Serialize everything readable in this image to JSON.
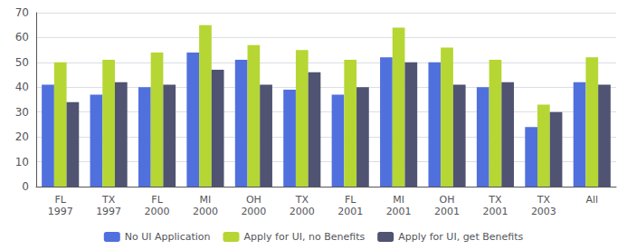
{
  "chart_data": {
    "type": "bar",
    "categories": [
      "FL\n1997",
      "TX\n1997",
      "FL\n2000",
      "MI\n2000",
      "OH\n2000",
      "TX\n2000",
      "FL\n2001",
      "MI\n2001",
      "OH\n2001",
      "TX\n2001",
      "TX\n2003",
      "All"
    ],
    "series": [
      {
        "name": "No UI Application",
        "values": [
          41,
          37,
          40,
          54,
          51,
          39,
          37,
          52,
          50,
          40,
          24,
          42
        ]
      },
      {
        "name": "Apply for UI, no Benefits",
        "values": [
          50,
          51,
          54,
          65,
          57,
          55,
          51,
          64,
          56,
          51,
          33,
          52
        ]
      },
      {
        "name": "Apply for UI, get Benefits",
        "values": [
          34,
          42,
          41,
          47,
          41,
          46,
          40,
          50,
          41,
          42,
          30,
          41
        ]
      }
    ],
    "ylim": [
      0,
      70
    ],
    "yticks": [
      0,
      10,
      20,
      30,
      40,
      50,
      60,
      70
    ],
    "grid": true,
    "legend": "bottom"
  }
}
